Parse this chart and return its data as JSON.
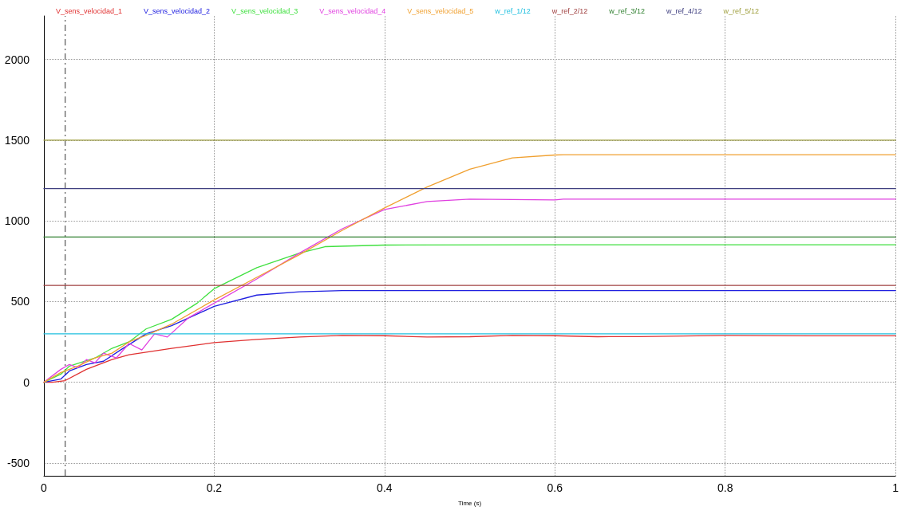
{
  "chart_data": {
    "type": "line",
    "xlabel": "Time (s)",
    "xlim": [
      0,
      1
    ],
    "xticks": [
      0,
      0.2,
      0.4,
      0.6,
      0.8,
      1
    ],
    "ylim": [
      -580,
      2270
    ],
    "yticks": [
      -500,
      0,
      500,
      1000,
      1500,
      2000
    ],
    "grid": true,
    "legend": "top",
    "marker": "none",
    "line_style": "solid",
    "ref_lines": [
      {
        "axis": "x",
        "value": 0.025,
        "label": null,
        "color": "#555555",
        "line_style": "dashed"
      }
    ],
    "series": [
      {
        "name": "V_sens_velocidad_1",
        "color": "#e03030",
        "x": [
          0,
          0.01,
          0.025,
          0.05,
          0.08,
          0.1,
          0.15,
          0.2,
          0.25,
          0.3,
          0.35,
          0.4,
          0.45,
          0.5,
          0.55,
          0.6,
          0.65,
          0.7,
          0.8,
          0.9,
          1
        ],
        "values": [
          0,
          0,
          10,
          80,
          140,
          170,
          210,
          245,
          265,
          280,
          290,
          288,
          280,
          282,
          290,
          288,
          282,
          283,
          290,
          287,
          287
        ]
      },
      {
        "name": "V_sens_velocidad_2",
        "color": "#2020e0",
        "x": [
          0,
          0.02,
          0.03,
          0.05,
          0.07,
          0.09,
          0.12,
          0.15,
          0.2,
          0.25,
          0.3,
          0.35,
          0.4,
          0.6,
          1
        ],
        "values": [
          0,
          20,
          70,
          110,
          130,
          200,
          300,
          350,
          470,
          540,
          560,
          568,
          568,
          568,
          568
        ]
      },
      {
        "name": "V_sens_velocidad_3",
        "color": "#40e040",
        "x": [
          0,
          0.02,
          0.03,
          0.06,
          0.08,
          0.1,
          0.12,
          0.15,
          0.18,
          0.2,
          0.25,
          0.3,
          0.33,
          0.4,
          0.6,
          1
        ],
        "values": [
          0,
          50,
          100,
          150,
          210,
          250,
          330,
          390,
          490,
          580,
          710,
          800,
          840,
          850,
          852,
          852
        ]
      },
      {
        "name": "V_sens_velocidad_4",
        "color": "#e040e0",
        "x": [
          0,
          0.02,
          0.03,
          0.04,
          0.05,
          0.06,
          0.07,
          0.085,
          0.1,
          0.115,
          0.13,
          0.145,
          0.17,
          0.2,
          0.25,
          0.3,
          0.35,
          0.4,
          0.45,
          0.5,
          0.6,
          0.61,
          1
        ],
        "values": [
          0,
          80,
          110,
          90,
          140,
          120,
          180,
          150,
          240,
          200,
          300,
          280,
          400,
          490,
          640,
          800,
          950,
          1070,
          1120,
          1135,
          1130,
          1135,
          1135
        ]
      },
      {
        "name": "V_sens_velocidad_5",
        "color": "#f0a030",
        "x": [
          0,
          0.02,
          0.04,
          0.06,
          0.08,
          0.1,
          0.12,
          0.15,
          0.2,
          0.25,
          0.3,
          0.35,
          0.4,
          0.45,
          0.5,
          0.55,
          0.6,
          0.61,
          1
        ],
        "values": [
          0,
          60,
          100,
          150,
          180,
          250,
          290,
          360,
          510,
          650,
          790,
          940,
          1080,
          1210,
          1320,
          1390,
          1408,
          1410,
          1410
        ]
      },
      {
        "name": "w_ref_1/12",
        "color": "#20c0e0",
        "x": [
          0,
          1
        ],
        "values": [
          300,
          300
        ]
      },
      {
        "name": "w_ref_2/12",
        "color": "#a04040",
        "x": [
          0,
          1
        ],
        "values": [
          600,
          600
        ]
      },
      {
        "name": "w_ref_3/12",
        "color": "#308030",
        "x": [
          0,
          1
        ],
        "values": [
          900,
          900
        ]
      },
      {
        "name": "w_ref_4/12",
        "color": "#404080",
        "x": [
          0,
          1
        ],
        "values": [
          1200,
          1200
        ]
      },
      {
        "name": "w_ref_5/12",
        "color": "#a0a040",
        "x": [
          0,
          1
        ],
        "values": [
          1500,
          1500
        ]
      }
    ]
  }
}
